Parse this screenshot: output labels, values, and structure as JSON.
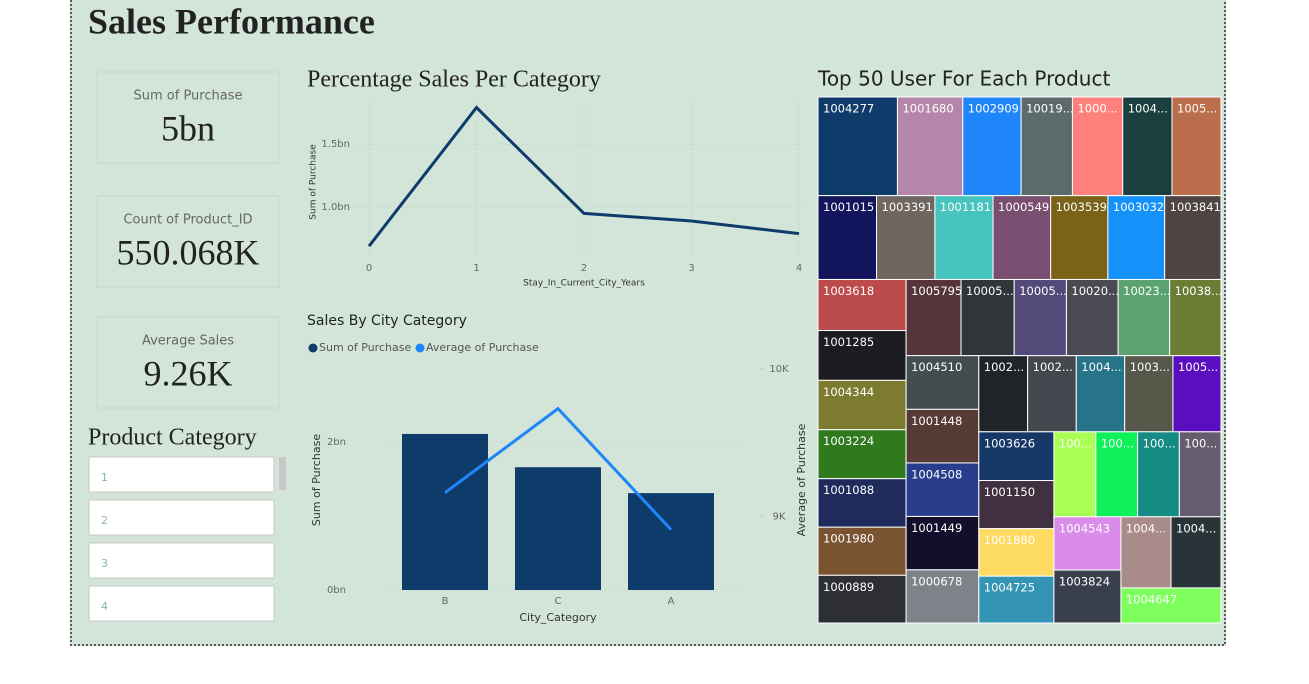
{
  "title": "Sales Performance",
  "cards": [
    {
      "label": "Sum of Purchase",
      "value": "5bn"
    },
    {
      "label": "Count of Product_ID",
      "value": "550.068K"
    },
    {
      "label": "Average Sales",
      "value": "9.26K"
    }
  ],
  "slicer": {
    "title": "Product Category",
    "items": [
      "1",
      "2",
      "3",
      "4"
    ]
  },
  "chart_data": [
    {
      "type": "line",
      "title": "Percentage Sales Per Category",
      "x_label": "Stay_In_Current_City_Years",
      "y_label": "Sum of Purchase",
      "x": [
        0,
        1,
        2,
        3,
        4
      ],
      "values": [
        0.69,
        1.79,
        0.95,
        0.89,
        0.79
      ],
      "color": "#0f3b6b",
      "xlim": [
        0,
        4
      ],
      "xticks": [
        0,
        1,
        2,
        3,
        4
      ],
      "ylim": [
        0.62,
        1.85
      ],
      "yticks": [
        {
          "value": 1.0,
          "label": "1.0bn"
        },
        {
          "value": 1.5,
          "label": "1.5bn"
        }
      ],
      "grid": true
    },
    {
      "type": "bar",
      "title": "Sales By City Category",
      "x_label": "City_Category",
      "y_label": "Sum of Purchase",
      "y2_label": "Average of Purchase",
      "categories": [
        "B",
        "C",
        "A"
      ],
      "series": [
        {
          "name": "Sum of Purchase",
          "color": "#0f3b6b",
          "type": "bar",
          "values": [
            2.11,
            1.66,
            1.31
          ]
        },
        {
          "name": "Average of Purchase",
          "color": "#1f86fa",
          "type": "line",
          "axis": "y2",
          "values": [
            9.16,
            9.73,
            8.91
          ]
        }
      ],
      "ylim": [
        0,
        3.11
      ],
      "yticks": [
        {
          "value": 0,
          "label": "0bn"
        },
        {
          "value": 2,
          "label": "2bn"
        }
      ],
      "y2lim": [
        8.5,
        10.06
      ],
      "y2ticks": [
        {
          "value": 9,
          "label": "9K"
        },
        {
          "value": 10,
          "label": "10K"
        }
      ],
      "grid": true,
      "legend": "top-left"
    },
    {
      "type": "treemap",
      "title": "Top 50 User For Each Product",
      "categories": [
        "1004277",
        "1001680",
        "1002909",
        "10019...",
        "1000...",
        "1004...",
        "1005...",
        "1001015",
        "1003391",
        "1001181",
        "1000549",
        "1003539",
        "1003032",
        "1003841",
        "1003618",
        "1001285",
        "1004344",
        "1003224",
        "1001088",
        "1001980",
        "1000889",
        "1005795",
        "10005...",
        "10005...",
        "10020...",
        "10023...",
        "10038...",
        "1004510",
        "1001448",
        "1004508",
        "1001449",
        "1000678",
        "1002...",
        "1002...",
        "1004...",
        "1003...",
        "1005...",
        "1003626",
        "1001150",
        "1001880",
        "1004725",
        "100...",
        "100...",
        "100...",
        "100...",
        "1004543",
        "1003824",
        "1004...",
        "1004...",
        "1004647"
      ],
      "values": [
        10.54,
        8.67,
        7.74,
        6.81,
        6.67,
        6.54,
        6.5,
        6.6,
        6.58,
        6.55,
        6.5,
        6.45,
        6.4,
        6.35,
        6.05,
        5.9,
        5.85,
        5.8,
        5.75,
        5.7,
        5.65,
        5.63,
        5.45,
        5.35,
        5.3,
        5.28,
        5.26,
        5.25,
        5.24,
        5.23,
        5.22,
        5.2,
        5.0,
        4.98,
        4.96,
        4.94,
        4.92,
        4.92,
        4.86,
        4.8,
        4.73,
        4.79,
        4.78,
        4.77,
        4.76,
        4.8,
        4.77,
        4.79,
        4.78,
        4.72
      ],
      "colors": [
        "#0f3b6b",
        "#b586a9",
        "#1f86fa",
        "#5c6a6b",
        "#fd807c",
        "#1b3f3e",
        "#bb6e4b",
        "#12155c",
        "#6f665f",
        "#47c4bd",
        "#794e71",
        "#7a6219",
        "#1591fa",
        "#4d4443",
        "#bc4b4b",
        "#1c1c21",
        "#7d7b2f",
        "#2e7a1c",
        "#1f2b5c",
        "#7a5431",
        "#2d2f35",
        "#55343c",
        "#2f3538",
        "#544a7a",
        "#4a4a53",
        "#5aa370",
        "#6b7d35",
        "#434d4f",
        "#563a34",
        "#283e8c",
        "#140d2b",
        "#7e8289",
        "#1e2427",
        "#45474e",
        "#27738a",
        "#57574a",
        "#5a0ec0",
        "#163867",
        "#403040",
        "#fdda61",
        "#3394b4",
        "#aaff55",
        "#0ff158",
        "#158b83",
        "#655c6e",
        "#d98ce8",
        "#393f4c",
        "#a98b8a",
        "#283437",
        "#7eff5e"
      ]
    }
  ]
}
